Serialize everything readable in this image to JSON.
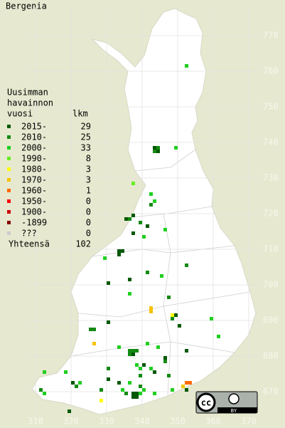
{
  "title": "Bergenia",
  "legend": {
    "heading": [
      "Uusimman",
      "havainnon",
      "vuosi"
    ],
    "count_heading": "lkm",
    "rows": [
      {
        "label": "2015-",
        "count": 29,
        "color": "#005800",
        "squares": [
          [
            343,
            738
          ],
          [
            344,
            737
          ],
          [
            337,
            719
          ],
          [
            335,
            718
          ],
          [
            341,
            716
          ],
          [
            337,
            714
          ],
          [
            333,
            709
          ],
          [
            333,
            708
          ],
          [
            334,
            709
          ],
          [
            336,
            701
          ],
          [
            330,
            700
          ],
          [
            349,
            691
          ],
          [
            350,
            688
          ],
          [
            330,
            689
          ],
          [
            337,
            680
          ],
          [
            352,
            681
          ],
          [
            346,
            679
          ],
          [
            340,
            677
          ],
          [
            343,
            675
          ],
          [
            333,
            672
          ],
          [
            330,
            673
          ],
          [
            320,
            672
          ],
          [
            337,
            669
          ],
          [
            338,
            669
          ],
          [
            338,
            668
          ],
          [
            337,
            668
          ],
          [
            352,
            670
          ],
          [
            319,
            664
          ]
        ]
      },
      {
        "label": "2010-",
        "count": 25,
        "color": "#138a13",
        "squares": [
          [
            344,
            738
          ],
          [
            343,
            737
          ],
          [
            342,
            722
          ],
          [
            336,
            718
          ],
          [
            339,
            717
          ],
          [
            341,
            703
          ],
          [
            352,
            705
          ],
          [
            347,
            696
          ],
          [
            348,
            690
          ],
          [
            325,
            687
          ],
          [
            326,
            687
          ],
          [
            336,
            681
          ],
          [
            337,
            681
          ],
          [
            338,
            681
          ],
          [
            336,
            680
          ],
          [
            346,
            678
          ],
          [
            347,
            674
          ],
          [
            330,
            676
          ],
          [
            321,
            671
          ],
          [
            328,
            670
          ],
          [
            339,
            674
          ],
          [
            339,
            671
          ],
          [
            335,
            669
          ],
          [
            311,
            670
          ]
        ]
      },
      {
        "label": "2000-",
        "count": 33,
        "color": "#1fcf1f",
        "squares": [
          [
            352,
            761
          ],
          [
            349,
            738
          ],
          [
            342,
            725
          ],
          [
            343,
            723
          ],
          [
            346,
            715
          ],
          [
            340,
            713
          ],
          [
            329,
            707
          ],
          [
            345,
            702
          ],
          [
            336,
            697
          ],
          [
            359,
            690
          ],
          [
            333,
            682
          ],
          [
            341,
            683
          ],
          [
            344,
            682
          ],
          [
            361,
            685
          ],
          [
            338,
            677
          ],
          [
            339,
            676
          ],
          [
            342,
            676
          ],
          [
            322,
            672
          ],
          [
            318,
            675
          ],
          [
            336,
            672
          ],
          [
            340,
            670
          ],
          [
            339,
            669
          ],
          [
            334,
            670
          ],
          [
            343,
            669
          ],
          [
            348,
            670
          ],
          [
            312,
            669
          ],
          [
            312,
            675
          ]
        ]
      },
      {
        "label": "1990-",
        "count": 8,
        "color": "#66ee22",
        "squares": [
          [
            337,
            728
          ]
        ]
      },
      {
        "label": "1980-",
        "count": 3,
        "color": "#ffff00",
        "squares": [
          [
            348,
            691
          ],
          [
            328,
            667
          ]
        ]
      },
      {
        "label": "1970-",
        "count": 3,
        "color": "#f5c400",
        "squares": [
          [
            342,
            693
          ],
          [
            342,
            692
          ],
          [
            326,
            683
          ],
          [
            351,
            671
          ]
        ]
      },
      {
        "label": "1960-",
        "count": 1,
        "color": "#ff6a00",
        "squares": [
          [
            352,
            672
          ],
          [
            353,
            672
          ]
        ]
      },
      {
        "label": "1950-",
        "count": 0,
        "color": "#ff0000",
        "squares": []
      },
      {
        "label": "1900-",
        "count": 0,
        "color": "#cc0000",
        "squares": []
      },
      {
        "label": "-1899",
        "count": 0,
        "color": "#880000",
        "squares": []
      },
      {
        "label": "???",
        "count": 0,
        "color": "#cccccc",
        "squares": []
      }
    ],
    "total_label": "Yhteensä",
    "total": 102
  },
  "axes": {
    "x_ticks": [
      310,
      320,
      330,
      340,
      350,
      360,
      370
    ],
    "y_ticks": [
      670,
      680,
      690,
      700,
      710,
      720,
      730,
      740,
      750,
      760,
      770
    ]
  },
  "license": {
    "icon": "cc",
    "label": "BY"
  }
}
